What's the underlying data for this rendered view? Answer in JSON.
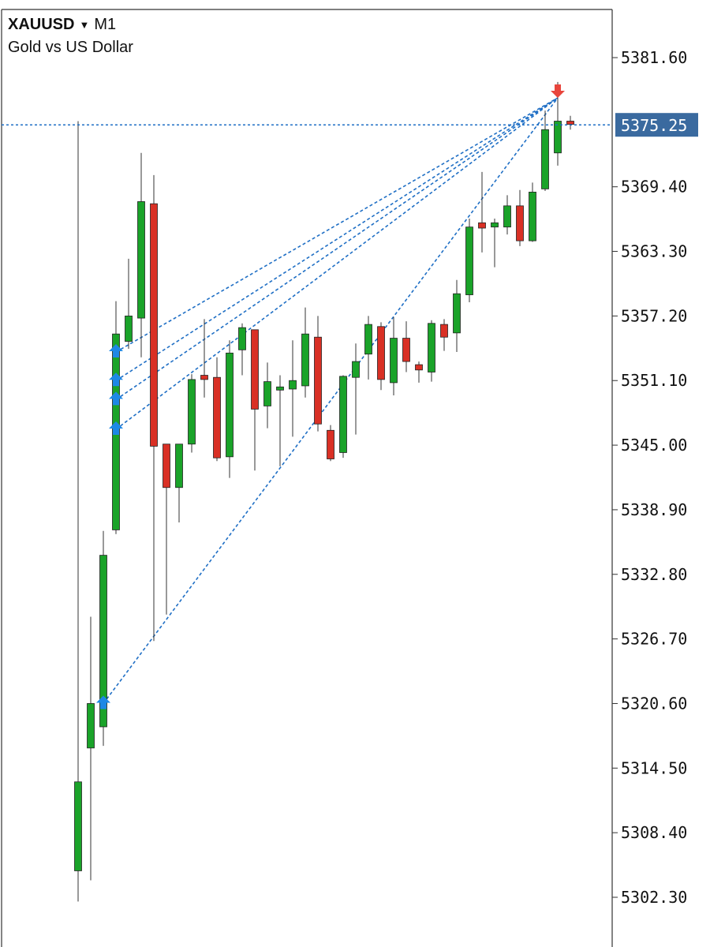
{
  "header": {
    "symbol": "XAUUSD",
    "dropdown_icon": "caret-down-icon",
    "timeframe": "M1",
    "description": "Gold vs US Dollar"
  },
  "colors": {
    "bull": "#1aa329",
    "bear": "#d93025",
    "current_price_line": "#1f6fc5",
    "current_price_label_bg": "#3a6a9f",
    "buy_arrow": "#1e88e5",
    "sell_arrow": "#e8453c",
    "signal_line": "#1f6fc5"
  },
  "chart_data": {
    "type": "candlestick",
    "price_axis": {
      "ticks": [
        "5381.60",
        "5375.25",
        "5369.40",
        "5363.30",
        "5357.20",
        "5351.10",
        "5345.00",
        "5338.90",
        "5332.80",
        "5326.70",
        "5320.60",
        "5314.50",
        "5308.40",
        "5302.30"
      ],
      "range": [
        5297.5,
        5387.0
      ]
    },
    "current_price": "5375.25",
    "candles": [
      {
        "o": 5304.8,
        "h": 5375.6,
        "l": 5301.9,
        "c": 5313.2
      },
      {
        "o": 5316.4,
        "h": 5328.8,
        "l": 5303.9,
        "c": 5320.6
      },
      {
        "o": 5318.4,
        "h": 5336.9,
        "l": 5316.6,
        "c": 5334.6
      },
      {
        "o": 5337.0,
        "h": 5358.6,
        "l": 5336.6,
        "c": 5355.5
      },
      {
        "o": 5354.8,
        "h": 5362.6,
        "l": 5354.1,
        "c": 5357.2
      },
      {
        "o": 5357.0,
        "h": 5372.6,
        "l": 5353.3,
        "c": 5368.0
      },
      {
        "o": 5367.8,
        "h": 5370.5,
        "l": 5326.5,
        "c": 5344.9
      },
      {
        "o": 5345.1,
        "h": 5345.1,
        "l": 5329.0,
        "c": 5341.0
      },
      {
        "o": 5341.0,
        "h": 5345.1,
        "l": 5337.7,
        "c": 5345.1
      },
      {
        "o": 5345.1,
        "h": 5351.7,
        "l": 5344.3,
        "c": 5351.2
      },
      {
        "o": 5351.6,
        "h": 5356.9,
        "l": 5349.5,
        "c": 5351.2
      },
      {
        "o": 5351.4,
        "h": 5353.3,
        "l": 5343.5,
        "c": 5343.8
      },
      {
        "o": 5343.9,
        "h": 5354.9,
        "l": 5341.9,
        "c": 5353.7
      },
      {
        "o": 5354.0,
        "h": 5356.5,
        "l": 5351.6,
        "c": 5356.1
      },
      {
        "o": 5355.9,
        "h": 5355.9,
        "l": 5342.6,
        "c": 5348.4
      },
      {
        "o": 5348.7,
        "h": 5352.8,
        "l": 5346.6,
        "c": 5351.0
      },
      {
        "o": 5350.2,
        "h": 5351.6,
        "l": 5343.0,
        "c": 5350.5
      },
      {
        "o": 5350.3,
        "h": 5354.9,
        "l": 5345.8,
        "c": 5351.1
      },
      {
        "o": 5350.6,
        "h": 5358.0,
        "l": 5349.5,
        "c": 5355.5
      },
      {
        "o": 5355.2,
        "h": 5357.2,
        "l": 5346.3,
        "c": 5347.0
      },
      {
        "o": 5346.4,
        "h": 5346.9,
        "l": 5343.5,
        "c": 5343.7
      },
      {
        "o": 5344.3,
        "h": 5351.6,
        "l": 5343.8,
        "c": 5351.5
      },
      {
        "o": 5351.4,
        "h": 5354.6,
        "l": 5346.0,
        "c": 5352.9
      },
      {
        "o": 5353.6,
        "h": 5357.2,
        "l": 5351.2,
        "c": 5356.4
      },
      {
        "o": 5356.2,
        "h": 5356.6,
        "l": 5350.2,
        "c": 5351.2
      },
      {
        "o": 5350.9,
        "h": 5357.1,
        "l": 5349.7,
        "c": 5355.1
      },
      {
        "o": 5355.1,
        "h": 5356.7,
        "l": 5351.9,
        "c": 5352.9
      },
      {
        "o": 5352.6,
        "h": 5352.9,
        "l": 5350.9,
        "c": 5352.1
      },
      {
        "o": 5351.9,
        "h": 5356.8,
        "l": 5351.0,
        "c": 5356.5
      },
      {
        "o": 5356.4,
        "h": 5356.9,
        "l": 5353.9,
        "c": 5355.2
      },
      {
        "o": 5355.6,
        "h": 5360.6,
        "l": 5353.8,
        "c": 5359.3
      },
      {
        "o": 5359.2,
        "h": 5366.4,
        "l": 5358.5,
        "c": 5365.6
      },
      {
        "o": 5366.0,
        "h": 5370.8,
        "l": 5363.2,
        "c": 5365.5
      },
      {
        "o": 5365.6,
        "h": 5366.4,
        "l": 5361.8,
        "c": 5366.0
      },
      {
        "o": 5365.6,
        "h": 5368.6,
        "l": 5364.9,
        "c": 5367.6
      },
      {
        "o": 5367.6,
        "h": 5369.1,
        "l": 5363.8,
        "c": 5364.3
      },
      {
        "o": 5364.3,
        "h": 5369.8,
        "l": 5364.2,
        "c": 5368.9
      },
      {
        "o": 5369.2,
        "h": 5376.6,
        "l": 5369.0,
        "c": 5374.8
      },
      {
        "o": 5372.6,
        "h": 5379.3,
        "l": 5371.4,
        "c": 5375.6
      },
      {
        "o": 5375.6,
        "h": 5376.1,
        "l": 5374.8,
        "c": 5375.3
      }
    ],
    "signals": [
      {
        "type": "buy",
        "bar": 2,
        "price": 5320.6
      },
      {
        "type": "buy",
        "bar": 3,
        "price": 5346.5
      },
      {
        "type": "buy",
        "bar": 3,
        "price": 5349.3
      },
      {
        "type": "buy",
        "bar": 3,
        "price": 5351.1
      },
      {
        "type": "buy",
        "bar": 3,
        "price": 5353.8
      },
      {
        "type": "sell",
        "bar": 38,
        "price": 5377.8
      }
    ]
  }
}
